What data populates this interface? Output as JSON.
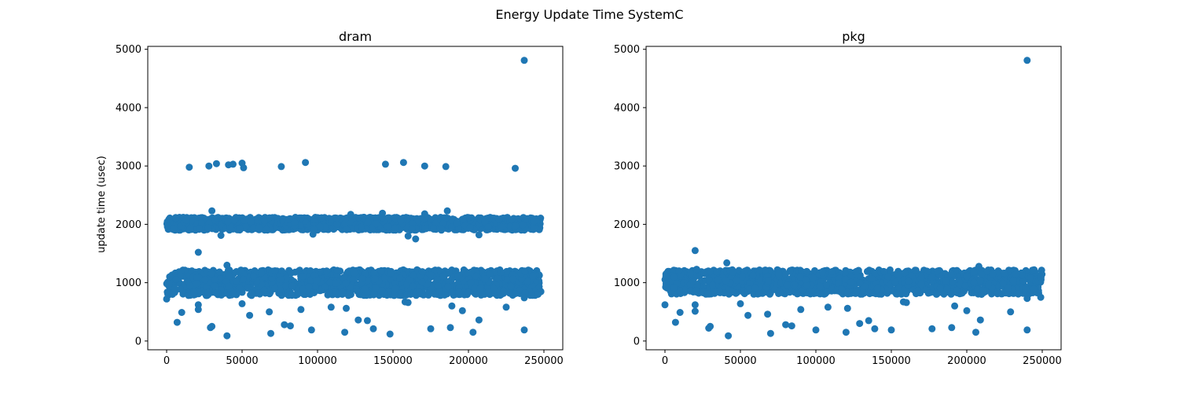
{
  "figure": {
    "suptitle": "Energy Update Time SystemC"
  },
  "chart_data": [
    {
      "type": "scatter",
      "title": "dram",
      "xlabel": "",
      "ylabel": "update time (usec)",
      "xlim": [
        -12500,
        262500
      ],
      "ylim": [
        -150,
        5050
      ],
      "xticks": [
        0,
        50000,
        100000,
        150000,
        200000,
        250000
      ],
      "yticks": [
        0,
        1000,
        2000,
        3000,
        4000,
        5000
      ],
      "grid": false,
      "color": "#1f77b4",
      "bands": [
        {
          "x_range": [
            0,
            248000
          ],
          "y_range": [
            780,
            1220
          ],
          "description": "dense cluster"
        },
        {
          "x_range": [
            0,
            248000
          ],
          "y_range": [
            1900,
            2120
          ],
          "description": "dense cluster"
        }
      ],
      "points": [
        [
          237000,
          4810
        ],
        [
          15000,
          2980
        ],
        [
          28000,
          3000
        ],
        [
          33000,
          3040
        ],
        [
          41000,
          3020
        ],
        [
          44000,
          3030
        ],
        [
          50000,
          3050
        ],
        [
          51000,
          2970
        ],
        [
          76000,
          2990
        ],
        [
          92000,
          3060
        ],
        [
          145000,
          3030
        ],
        [
          157000,
          3060
        ],
        [
          171000,
          3000
        ],
        [
          185000,
          2990
        ],
        [
          231000,
          2960
        ],
        [
          30000,
          2230
        ],
        [
          186000,
          2230
        ],
        [
          122000,
          2170
        ],
        [
          143000,
          2190
        ],
        [
          171000,
          2180
        ],
        [
          36000,
          1810
        ],
        [
          97000,
          1830
        ],
        [
          160000,
          1800
        ],
        [
          165000,
          1750
        ],
        [
          207000,
          1820
        ],
        [
          21000,
          1520
        ],
        [
          40000,
          1300
        ],
        [
          0,
          720
        ],
        [
          21000,
          620
        ],
        [
          50000,
          640
        ],
        [
          158000,
          670
        ],
        [
          160000,
          660
        ],
        [
          189000,
          600
        ],
        [
          237000,
          740
        ],
        [
          246000,
          800
        ],
        [
          7000,
          320
        ],
        [
          10000,
          490
        ],
        [
          21000,
          540
        ],
        [
          29000,
          230
        ],
        [
          30000,
          250
        ],
        [
          40000,
          90
        ],
        [
          55000,
          440
        ],
        [
          68000,
          500
        ],
        [
          69000,
          130
        ],
        [
          78000,
          280
        ],
        [
          82000,
          260
        ],
        [
          89000,
          540
        ],
        [
          96000,
          190
        ],
        [
          109000,
          580
        ],
        [
          118000,
          150
        ],
        [
          119000,
          560
        ],
        [
          127000,
          360
        ],
        [
          133000,
          350
        ],
        [
          137000,
          210
        ],
        [
          148000,
          120
        ],
        [
          175000,
          210
        ],
        [
          188000,
          230
        ],
        [
          196000,
          520
        ],
        [
          203000,
          150
        ],
        [
          207000,
          360
        ],
        [
          225000,
          580
        ],
        [
          237000,
          190
        ]
      ]
    },
    {
      "type": "scatter",
      "title": "pkg",
      "xlabel": "",
      "ylabel": "",
      "xlim": [
        -12500,
        262500
      ],
      "ylim": [
        -150,
        5050
      ],
      "xticks": [
        0,
        50000,
        100000,
        150000,
        200000,
        250000
      ],
      "yticks": [
        0,
        1000,
        2000,
        3000,
        4000,
        5000
      ],
      "grid": false,
      "color": "#1f77b4",
      "bands": [
        {
          "x_range": [
            0,
            250000
          ],
          "y_range": [
            800,
            1220
          ],
          "description": "dense cluster"
        }
      ],
      "points": [
        [
          240000,
          4810
        ],
        [
          20000,
          1550
        ],
        [
          41000,
          1340
        ],
        [
          21000,
          1230
        ],
        [
          208000,
          1280
        ],
        [
          0,
          620
        ],
        [
          20000,
          620
        ],
        [
          50000,
          640
        ],
        [
          158000,
          670
        ],
        [
          160000,
          660
        ],
        [
          192000,
          600
        ],
        [
          240000,
          730
        ],
        [
          249000,
          750
        ],
        [
          7000,
          320
        ],
        [
          10000,
          490
        ],
        [
          20000,
          510
        ],
        [
          29000,
          220
        ],
        [
          30000,
          250
        ],
        [
          42000,
          90
        ],
        [
          55000,
          440
        ],
        [
          68000,
          460
        ],
        [
          70000,
          130
        ],
        [
          80000,
          280
        ],
        [
          84000,
          260
        ],
        [
          90000,
          540
        ],
        [
          100000,
          190
        ],
        [
          108000,
          580
        ],
        [
          120000,
          150
        ],
        [
          121000,
          560
        ],
        [
          129000,
          300
        ],
        [
          135000,
          350
        ],
        [
          139000,
          210
        ],
        [
          150000,
          190
        ],
        [
          177000,
          210
        ],
        [
          190000,
          230
        ],
        [
          200000,
          520
        ],
        [
          206000,
          150
        ],
        [
          209000,
          360
        ],
        [
          229000,
          500
        ],
        [
          240000,
          190
        ]
      ]
    }
  ]
}
